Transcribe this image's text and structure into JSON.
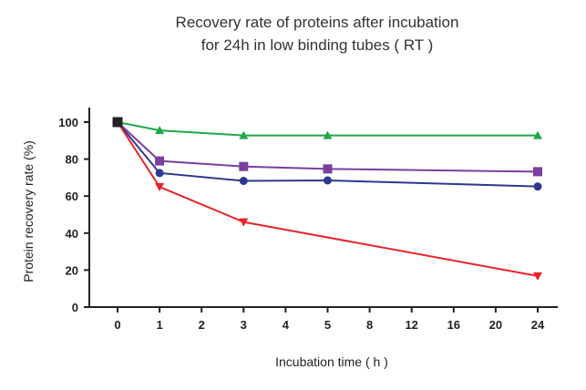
{
  "chart_data": {
    "type": "line",
    "title": [
      "Recovery rate of proteins after incubation",
      "for 24h in low binding tubes ( RT )"
    ],
    "xlabel": "Incubation time ( h )",
    "ylabel": "Protein recovery rate (%)",
    "categories": [
      "0",
      "1",
      "2",
      "3",
      "4",
      "5",
      "8",
      "12",
      "16",
      "20",
      "24"
    ],
    "ylim": [
      0,
      110
    ],
    "yticks": [
      "0",
      "20",
      "40",
      "60",
      "80",
      "100"
    ],
    "grid": false,
    "series": [
      {
        "name": "green-triangle",
        "color": "#22a84a",
        "marker": "triangle-up",
        "points": [
          [
            "0",
            100
          ],
          [
            "1",
            95.5
          ],
          [
            "3",
            92.8
          ],
          [
            "5",
            92.8
          ],
          [
            "24",
            92.8
          ]
        ]
      },
      {
        "name": "purple-square",
        "color": "#7b3f9e",
        "marker": "square",
        "points": [
          [
            "0",
            100
          ],
          [
            "1",
            79
          ],
          [
            "3",
            76
          ],
          [
            "5",
            74.7
          ],
          [
            "24",
            73.2
          ]
        ]
      },
      {
        "name": "blue-circle",
        "color": "#2b3990",
        "marker": "circle",
        "points": [
          [
            "0",
            100
          ],
          [
            "1",
            72.5
          ],
          [
            "3",
            68.2
          ],
          [
            "5",
            68.5
          ],
          [
            "24",
            65.2
          ]
        ]
      },
      {
        "name": "red-triangle",
        "color": "#e8222a",
        "marker": "triangle-down",
        "points": [
          [
            "0",
            100
          ],
          [
            "1",
            65
          ],
          [
            "3",
            46
          ],
          [
            "24",
            16.8
          ]
        ]
      }
    ],
    "start_marker_color": "#222222"
  }
}
